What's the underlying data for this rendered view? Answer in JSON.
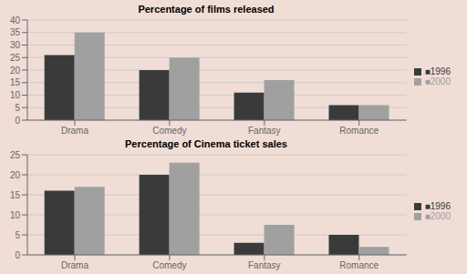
{
  "chart_data": [
    {
      "type": "bar",
      "title": "Percentage of films released",
      "categories": [
        "Drama",
        "Comedy",
        "Fantasy",
        "Romance"
      ],
      "series": [
        {
          "name": "■1996",
          "color": "#3a3a3a",
          "values": [
            26,
            20,
            11,
            6
          ]
        },
        {
          "name": "■2000",
          "color": "#a0a0a0",
          "values": [
            35,
            25,
            16,
            6
          ]
        }
      ],
      "ylim": [
        0,
        40
      ],
      "yticks": [
        0,
        5,
        10,
        15,
        20,
        25,
        30,
        35,
        40
      ],
      "grid": true,
      "legend": "right"
    },
    {
      "type": "bar",
      "title": "Percentage of Cinema ticket sales",
      "categories": [
        "Drama",
        "Comedy",
        "Fantasy",
        "Romance"
      ],
      "series": [
        {
          "name": "■1996",
          "color": "#3a3a3a",
          "values": [
            16,
            20,
            3,
            5
          ]
        },
        {
          "name": "■2000",
          "color": "#a0a0a0",
          "values": [
            17,
            23,
            7.5,
            2
          ]
        }
      ],
      "ylim": [
        0,
        25
      ],
      "yticks": [
        0,
        5,
        10,
        15,
        20,
        25
      ],
      "grid": true,
      "legend": "right"
    }
  ]
}
